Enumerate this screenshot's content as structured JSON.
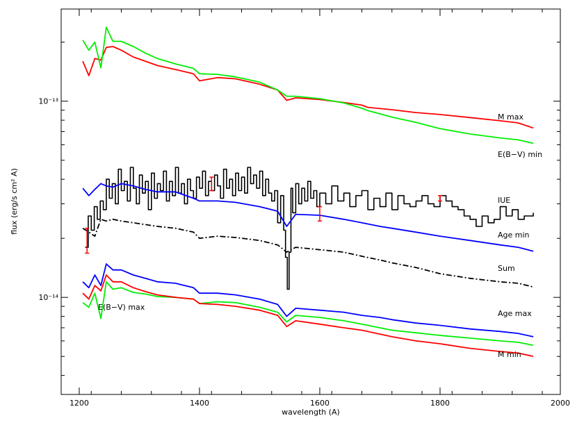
{
  "chart_data": {
    "type": "line",
    "xlabel": "wavelength (A)",
    "ylabel": "flux (erg/s cm² A)",
    "xlim": [
      1170,
      2000
    ],
    "ylim": [
      3.2e-15,
      2.95e-13
    ],
    "yscale": "log",
    "x_ticks": [
      1200,
      1400,
      1600,
      1800,
      2000
    ],
    "y_major_ticks": [
      {
        "value": 1e-14,
        "label": "10⁻¹⁴"
      },
      {
        "value": 1e-13,
        "label": "10⁻¹³"
      }
    ],
    "grid": false,
    "series": [
      {
        "name": "M max",
        "color": "#ff0000",
        "style": "solid",
        "x": [
          1206,
          1216,
          1226,
          1236,
          1245,
          1256,
          1270,
          1290,
          1310,
          1330,
          1360,
          1390,
          1400,
          1430,
          1460,
          1500,
          1530,
          1545,
          1560,
          1600,
          1640,
          1670,
          1680,
          1720,
          1760,
          1800,
          1850,
          1900,
          1930,
          1955
        ],
        "y": [
          1.6e-13,
          1.35e-13,
          1.65e-13,
          1.62e-13,
          1.88e-13,
          1.9e-13,
          1.82e-13,
          1.68e-13,
          1.6e-13,
          1.52e-13,
          1.45e-13,
          1.38e-13,
          1.27e-13,
          1.32e-13,
          1.3e-13,
          1.22e-13,
          1.14e-13,
          1.01e-13,
          1.04e-13,
          1.02e-13,
          9.85e-14,
          9.55e-14,
          9.3e-14,
          9.05e-14,
          8.75e-14,
          8.55e-14,
          8.25e-14,
          7.95e-14,
          7.75e-14,
          7.3e-14
        ]
      },
      {
        "name": "E(B-V) min",
        "color": "#00ee00",
        "style": "solid",
        "x": [
          1206,
          1216,
          1226,
          1236,
          1245,
          1256,
          1270,
          1290,
          1310,
          1330,
          1360,
          1390,
          1400,
          1430,
          1460,
          1500,
          1530,
          1545,
          1560,
          1600,
          1640,
          1670,
          1680,
          1720,
          1760,
          1800,
          1850,
          1900,
          1930,
          1955
        ],
        "y": [
          2.05e-13,
          1.82e-13,
          2e-13,
          1.48e-13,
          2.38e-13,
          2.02e-13,
          2.02e-13,
          1.9e-13,
          1.76e-13,
          1.65e-13,
          1.55e-13,
          1.47e-13,
          1.38e-13,
          1.37e-13,
          1.33e-13,
          1.25e-13,
          1.14e-13,
          1.06e-13,
          1.06e-13,
          1.03e-13,
          9.8e-14,
          9.2e-14,
          8.95e-14,
          8.3e-14,
          7.8e-14,
          7.25e-14,
          6.8e-14,
          6.5e-14,
          6.35e-14,
          6.1e-14
        ]
      },
      {
        "name": "IUE",
        "color": "#000000",
        "style": "solid",
        "x": [
          1210,
          1215,
          1220,
          1225,
          1230,
          1235,
          1240,
          1245,
          1250,
          1255,
          1260,
          1265,
          1270,
          1275,
          1280,
          1285,
          1290,
          1295,
          1300,
          1305,
          1310,
          1315,
          1320,
          1325,
          1330,
          1335,
          1340,
          1345,
          1350,
          1355,
          1360,
          1365,
          1370,
          1375,
          1380,
          1385,
          1390,
          1395,
          1400,
          1405,
          1410,
          1415,
          1420,
          1425,
          1430,
          1435,
          1440,
          1445,
          1450,
          1455,
          1460,
          1465,
          1470,
          1475,
          1480,
          1485,
          1490,
          1495,
          1500,
          1505,
          1510,
          1515,
          1520,
          1525,
          1530,
          1535,
          1540,
          1543,
          1546,
          1549,
          1552,
          1555,
          1560,
          1565,
          1570,
          1575,
          1580,
          1585,
          1590,
          1595,
          1600,
          1610,
          1620,
          1630,
          1640,
          1650,
          1660,
          1670,
          1680,
          1690,
          1700,
          1710,
          1720,
          1730,
          1740,
          1750,
          1760,
          1770,
          1780,
          1790,
          1800,
          1810,
          1820,
          1830,
          1840,
          1850,
          1860,
          1870,
          1880,
          1890,
          1900,
          1910,
          1920,
          1930,
          1940,
          1955
        ],
        "y": [
          1.8e-14,
          2.6e-14,
          2.2e-14,
          2.9e-14,
          2.5e-14,
          3.1e-14,
          2.8e-14,
          4e-14,
          3.2e-14,
          3.8e-14,
          3e-14,
          4.5e-14,
          3.5e-14,
          3.9e-14,
          3.1e-14,
          4.6e-14,
          3.6e-14,
          3e-14,
          4.2e-14,
          3.4e-14,
          3.9e-14,
          2.8e-14,
          4.3e-14,
          3.2e-14,
          3.8e-14,
          3.5e-14,
          4.4e-14,
          3.1e-14,
          3.9e-14,
          3.3e-14,
          4.6e-14,
          3.4e-14,
          3.8e-14,
          3e-14,
          4e-14,
          3.5e-14,
          3.2e-14,
          4.1e-14,
          3.6e-14,
          4.4e-14,
          3.3e-14,
          3.9e-14,
          3.5e-14,
          4.2e-14,
          3.7e-14,
          3.2e-14,
          4.5e-14,
          3.6e-14,
          4e-14,
          3.3e-14,
          4.3e-14,
          3.5e-14,
          4.1e-14,
          3.4e-14,
          4.6e-14,
          3.8e-14,
          4.2e-14,
          3.6e-14,
          4.4e-14,
          3.3e-14,
          4e-14,
          3.4e-14,
          3.1e-14,
          3.5e-14,
          2.4e-14,
          3.3e-14,
          2.2e-14,
          1.6e-14,
          1.1e-14,
          1.7e-14,
          3.6e-14,
          2.7e-14,
          3.8e-14,
          3e-14,
          3.6e-14,
          3.1e-14,
          3.9e-14,
          3.2e-14,
          3.5e-14,
          2.9e-14,
          3.4e-14,
          3e-14,
          3.7e-14,
          3.1e-14,
          3.4e-14,
          2.9e-14,
          3.3e-14,
          3.5e-14,
          2.8e-14,
          3.2e-14,
          2.9e-14,
          3.4e-14,
          2.8e-14,
          3.3e-14,
          3e-14,
          2.9e-14,
          3.1e-14,
          3.3e-14,
          3e-14,
          2.9e-14,
          3.3e-14,
          3.1e-14,
          2.9e-14,
          2.8e-14,
          2.6e-14,
          2.5e-14,
          2.3e-14,
          2.6e-14,
          2.4e-14,
          2.5e-14,
          2.9e-14,
          2.6e-14,
          2.8e-14,
          2.5e-14,
          2.6e-14,
          2.7e-14
        ]
      },
      {
        "name": "Age min",
        "color": "#0000ff",
        "style": "solid",
        "x": [
          1206,
          1216,
          1226,
          1236,
          1245,
          1256,
          1270,
          1290,
          1310,
          1330,
          1360,
          1390,
          1400,
          1430,
          1460,
          1500,
          1530,
          1545,
          1560,
          1600,
          1640,
          1670,
          1700,
          1720,
          1760,
          1800,
          1850,
          1900,
          1930,
          1955
        ],
        "y": [
          3.6e-14,
          3.3e-14,
          3.55e-14,
          3.8e-14,
          3.7e-14,
          3.65e-14,
          3.8e-14,
          3.7e-14,
          3.55e-14,
          3.45e-14,
          3.45e-14,
          3.2e-14,
          3.1e-14,
          3.1e-14,
          3.05e-14,
          2.9e-14,
          2.75e-14,
          2.3e-14,
          2.65e-14,
          2.62e-14,
          2.5e-14,
          2.4e-14,
          2.3e-14,
          2.25e-14,
          2.15e-14,
          2.05e-14,
          1.95e-14,
          1.85e-14,
          1.8e-14,
          1.72e-14
        ]
      },
      {
        "name": "Sum",
        "color": "#000000",
        "style": "dashdot",
        "x": [
          1206,
          1216,
          1226,
          1236,
          1245,
          1256,
          1270,
          1290,
          1310,
          1330,
          1360,
          1390,
          1400,
          1430,
          1460,
          1500,
          1530,
          1545,
          1560,
          1600,
          1640,
          1670,
          1700,
          1720,
          1760,
          1800,
          1850,
          1900,
          1930,
          1955
        ],
        "y": [
          2.25e-14,
          2.15e-14,
          2.05e-14,
          2.5e-14,
          2.45e-14,
          2.5e-14,
          2.45e-14,
          2.4e-14,
          2.35e-14,
          2.3e-14,
          2.25e-14,
          2.15e-14,
          2e-14,
          2.05e-14,
          2.02e-14,
          1.95e-14,
          1.85e-14,
          1.7e-14,
          1.8e-14,
          1.75e-14,
          1.7e-14,
          1.62e-14,
          1.55e-14,
          1.5e-14,
          1.42e-14,
          1.32e-14,
          1.25e-14,
          1.2e-14,
          1.18e-14,
          1.13e-14
        ]
      },
      {
        "name": "Age max",
        "color": "#0000ff",
        "style": "solid",
        "x": [
          1206,
          1216,
          1226,
          1236,
          1245,
          1256,
          1270,
          1290,
          1310,
          1330,
          1360,
          1390,
          1400,
          1430,
          1460,
          1500,
          1530,
          1545,
          1560,
          1600,
          1640,
          1670,
          1700,
          1720,
          1760,
          1800,
          1850,
          1900,
          1930,
          1955
        ],
        "y": [
          1.2e-14,
          1.12e-14,
          1.3e-14,
          1.15e-14,
          1.48e-14,
          1.38e-14,
          1.38e-14,
          1.3e-14,
          1.25e-14,
          1.2e-14,
          1.18e-14,
          1.12e-14,
          1.05e-14,
          1.05e-14,
          1.03e-14,
          9.8e-15,
          9.2e-15,
          8e-15,
          8.8e-15,
          8.6e-15,
          8.4e-15,
          8.1e-15,
          7.9e-15,
          7.7e-15,
          7.4e-15,
          7.2e-15,
          6.9e-15,
          6.7e-15,
          6.55e-15,
          6.3e-15
        ]
      },
      {
        "name": "E(B-V) max",
        "color": "#00ee00",
        "style": "solid",
        "x": [
          1206,
          1216,
          1226,
          1236,
          1245,
          1256,
          1270,
          1290,
          1310,
          1330,
          1360,
          1390,
          1400,
          1430,
          1460,
          1500,
          1530,
          1545,
          1560,
          1600,
          1640,
          1670,
          1700,
          1720,
          1760,
          1800,
          1850,
          1900,
          1930,
          1955
        ],
        "y": [
          9.4e-15,
          8.9e-15,
          1.05e-14,
          7.8e-15,
          1.2e-14,
          1.1e-14,
          1.12e-14,
          1.06e-14,
          1.04e-14,
          1.01e-14,
          1e-14,
          9.8e-15,
          9.3e-15,
          9.5e-15,
          9.4e-15,
          8.9e-15,
          8.4e-15,
          7.5e-15,
          8.1e-15,
          7.9e-15,
          7.6e-15,
          7.3e-15,
          7e-15,
          6.8e-15,
          6.6e-15,
          6.4e-15,
          6.2e-15,
          6e-15,
          5.9e-15,
          5.7e-15
        ]
      },
      {
        "name": "M min",
        "color": "#ff0000",
        "style": "solid",
        "x": [
          1206,
          1216,
          1226,
          1236,
          1245,
          1256,
          1270,
          1290,
          1310,
          1330,
          1360,
          1390,
          1400,
          1430,
          1460,
          1500,
          1530,
          1545,
          1560,
          1600,
          1640,
          1670,
          1700,
          1720,
          1760,
          1800,
          1850,
          1900,
          1930,
          1955
        ],
        "y": [
          1.05e-14,
          9.8e-15,
          1.15e-14,
          1.08e-14,
          1.3e-14,
          1.2e-14,
          1.2e-14,
          1.12e-14,
          1.07e-14,
          1.03e-14,
          1e-14,
          9.8e-15,
          9.3e-15,
          9.2e-15,
          9e-15,
          8.6e-15,
          8.1e-15,
          7.1e-15,
          7.6e-15,
          7.3e-15,
          7e-15,
          6.8e-15,
          6.5e-15,
          6.3e-15,
          6e-15,
          5.8e-15,
          5.5e-15,
          5.3e-15,
          5.2e-15,
          5e-15
        ]
      }
    ],
    "error_bars": {
      "color": "#ff0000",
      "points": [
        {
          "x": 1213,
          "low": 1.68e-14,
          "high": 2.25e-14
        },
        {
          "x": 1420,
          "low": 3.5e-14,
          "high": 4.1e-14
        },
        {
          "x": 1600,
          "low": 2.45e-14,
          "high": 2.9e-14
        },
        {
          "x": 1800,
          "low": 3.1e-14,
          "high": 3.3e-14
        }
      ]
    },
    "series_labels": [
      {
        "series": "M max",
        "text": "M max"
      },
      {
        "series": "E(B-V) min",
        "text": "E(B−V) min"
      },
      {
        "series": "IUE",
        "text": "IUE"
      },
      {
        "series": "Age min",
        "text": "Age min"
      },
      {
        "series": "Sum",
        "text": "Sum"
      },
      {
        "series": "E(B-V) max",
        "text": "E(B−V) max"
      },
      {
        "series": "Age max",
        "text": "Age max"
      },
      {
        "series": "M min",
        "text": "M min"
      }
    ]
  }
}
